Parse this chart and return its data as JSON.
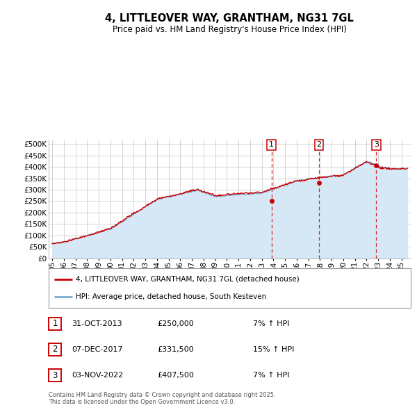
{
  "title_line1": "4, LITTLEOVER WAY, GRANTHAM, NG31 7GL",
  "title_line2": "Price paid vs. HM Land Registry's House Price Index (HPI)",
  "ylim": [
    0,
    520000
  ],
  "yticks": [
    0,
    50000,
    100000,
    150000,
    200000,
    250000,
    300000,
    350000,
    400000,
    450000,
    500000
  ],
  "ytick_labels": [
    "£0",
    "£50K",
    "£100K",
    "£150K",
    "£200K",
    "£250K",
    "£300K",
    "£350K",
    "£400K",
    "£450K",
    "£500K"
  ],
  "xlim_start": 1994.7,
  "xlim_end": 2025.8,
  "x_tick_years": [
    1995,
    1996,
    1997,
    1998,
    1999,
    2000,
    2001,
    2002,
    2003,
    2004,
    2005,
    2006,
    2007,
    2008,
    2009,
    2010,
    2011,
    2012,
    2013,
    2014,
    2015,
    2016,
    2017,
    2018,
    2019,
    2020,
    2021,
    2022,
    2023,
    2024,
    2025
  ],
  "sale_color": "#cc0000",
  "hpi_color": "#7aadd4",
  "hpi_fill_color": "#d6e8f5",
  "sale_dates": [
    2013.833,
    2017.917,
    2022.833
  ],
  "sale_prices": [
    250000,
    331500,
    407500
  ],
  "sale_labels": [
    "1",
    "2",
    "3"
  ],
  "vline_color": "#cc0000",
  "annotation_border_color": "#cc0000",
  "legend_label_red": "4, LITTLEOVER WAY, GRANTHAM, NG31 7GL (detached house)",
  "legend_label_blue": "HPI: Average price, detached house, South Kesteven",
  "table_rows": [
    {
      "num": "1",
      "date": "31-OCT-2013",
      "price": "£250,000",
      "hpi": "7% ↑ HPI"
    },
    {
      "num": "2",
      "date": "07-DEC-2017",
      "price": "£331,500",
      "hpi": "15% ↑ HPI"
    },
    {
      "num": "3",
      "date": "03-NOV-2022",
      "price": "£407,500",
      "hpi": "7% ↑ HPI"
    }
  ],
  "footer_text": "Contains HM Land Registry data © Crown copyright and database right 2025.\nThis data is licensed under the Open Government Licence v3.0.",
  "background_color": "#ffffff",
  "grid_color": "#cccccc"
}
